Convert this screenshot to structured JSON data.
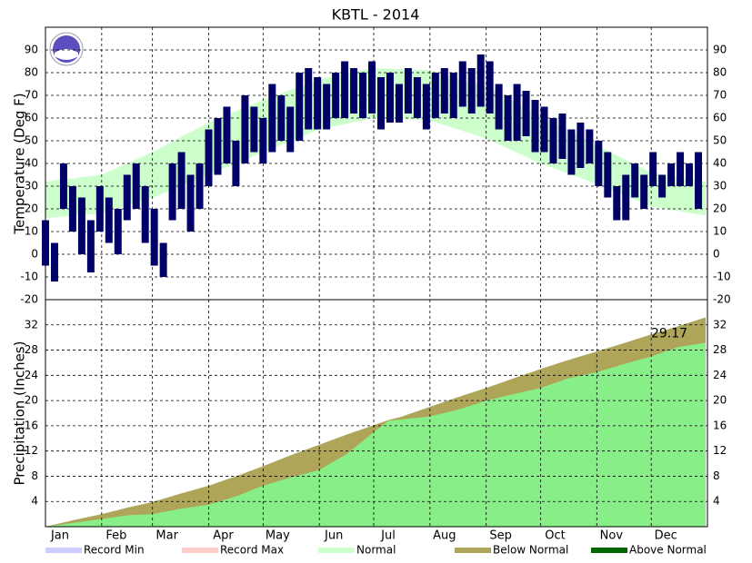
{
  "chart_data": [
    {
      "type": "range",
      "title": "KBTL - 2014",
      "y_label": "Temperature (Deg F)",
      "xlim": [
        1,
        366
      ],
      "xticks": [
        1,
        32,
        60,
        91,
        121,
        152,
        182,
        213,
        244,
        274,
        305,
        335
      ],
      "ylim": [
        -20,
        100
      ],
      "yticks": [
        -20,
        -10,
        0,
        10,
        20,
        30,
        40,
        50,
        60,
        70,
        80,
        90
      ],
      "grid": true,
      "x": [
        1,
        6,
        11,
        16,
        21,
        26,
        31,
        36,
        41,
        46,
        51,
        56,
        61,
        66,
        71,
        76,
        81,
        86,
        91,
        96,
        101,
        106,
        111,
        116,
        121,
        126,
        131,
        136,
        141,
        146,
        151,
        156,
        161,
        166,
        171,
        176,
        181,
        186,
        191,
        196,
        201,
        206,
        211,
        216,
        221,
        226,
        231,
        236,
        241,
        246,
        251,
        256,
        261,
        266,
        271,
        276,
        281,
        286,
        291,
        296,
        301,
        306,
        311,
        316,
        321,
        326,
        331,
        336,
        341,
        346,
        351,
        356,
        361
      ],
      "series": [
        {
          "color": "#000066",
          "high": [
            15,
            5,
            40,
            30,
            25,
            15,
            30,
            25,
            20,
            35,
            40,
            30,
            20,
            5,
            40,
            45,
            35,
            40,
            55,
            60,
            65,
            50,
            70,
            65,
            60,
            75,
            70,
            65,
            80,
            82,
            78,
            75,
            80,
            85,
            82,
            80,
            85,
            78,
            80,
            75,
            82,
            78,
            75,
            80,
            82,
            80,
            85,
            82,
            88,
            85,
            75,
            70,
            75,
            72,
            68,
            65,
            60,
            62,
            55,
            58,
            55,
            50,
            45,
            30,
            35,
            40,
            35,
            45,
            35,
            40,
            45,
            40,
            45
          ],
          "low": [
            -5,
            -12,
            20,
            10,
            0,
            -8,
            10,
            5,
            0,
            15,
            20,
            5,
            -5,
            -10,
            15,
            20,
            10,
            20,
            30,
            35,
            40,
            30,
            40,
            45,
            40,
            45,
            50,
            45,
            50,
            55,
            55,
            55,
            60,
            60,
            62,
            60,
            62,
            55,
            58,
            58,
            62,
            60,
            55,
            60,
            62,
            60,
            65,
            62,
            65,
            62,
            55,
            50,
            50,
            52,
            45,
            45,
            40,
            42,
            35,
            38,
            40,
            30,
            25,
            15,
            15,
            25,
            20,
            30,
            25,
            30,
            30,
            30,
            20
          ]
        }
      ],
      "normal": {
        "color": "#ccffcc",
        "x": [
          1,
          32,
          60,
          91,
          121,
          152,
          182,
          213,
          244,
          274,
          305,
          335,
          365
        ],
        "high": [
          32,
          35,
          45,
          58,
          68,
          77,
          82,
          81,
          74,
          61,
          48,
          36,
          32
        ],
        "low": [
          16,
          18,
          25,
          35,
          45,
          55,
          60,
          59,
          51,
          40,
          31,
          21,
          17
        ]
      }
    },
    {
      "type": "area",
      "y_label": "Precipitation (Inches)",
      "xlim": [
        1,
        366
      ],
      "xticks": [
        1,
        32,
        60,
        91,
        121,
        152,
        182,
        213,
        244,
        274,
        305,
        335
      ],
      "categories": [
        "Jan",
        "Feb",
        "Mar",
        "Apr",
        "May",
        "Jun",
        "Jul",
        "Aug",
        "Sep",
        "Oct",
        "Nov",
        "Dec"
      ],
      "ylim": [
        0,
        36
      ],
      "yticks": [
        4,
        8,
        12,
        16,
        20,
        24,
        28,
        32
      ],
      "grid": true,
      "x": [
        1,
        16,
        32,
        46,
        60,
        75,
        91,
        106,
        121,
        136,
        152,
        167,
        182,
        190,
        197,
        213,
        228,
        244,
        259,
        274,
        289,
        305,
        320,
        335,
        350,
        365
      ],
      "normal": [
        0,
        1.0,
        2.0,
        3.0,
        3.9,
        5.2,
        6.5,
        8.0,
        9.6,
        11.3,
        13.0,
        14.6,
        16.1,
        16.9,
        17.4,
        19.0,
        20.5,
        22.0,
        23.5,
        25.0,
        26.4,
        27.8,
        29.1,
        30.5,
        31.8,
        33.2
      ],
      "actual": [
        0,
        0.6,
        1.2,
        1.8,
        2.0,
        2.8,
        3.5,
        4.8,
        6.5,
        7.8,
        9.0,
        11.5,
        15.0,
        16.8,
        17.0,
        17.5,
        18.5,
        20.0,
        21.0,
        22.0,
        23.5,
        24.5,
        25.8,
        27.0,
        28.5,
        29.17
      ],
      "actual_color": "#88ee88",
      "legend": [
        {
          "name": "Record Min",
          "color": "#ccccff"
        },
        {
          "name": "Record Max",
          "color": "#ffcccc"
        },
        {
          "name": "Normal",
          "color": "#ccffcc"
        },
        {
          "name": "Below Normal",
          "color": "#aea558"
        },
        {
          "name": "Above Normal",
          "color": "#006600"
        }
      ]
    }
  ]
}
